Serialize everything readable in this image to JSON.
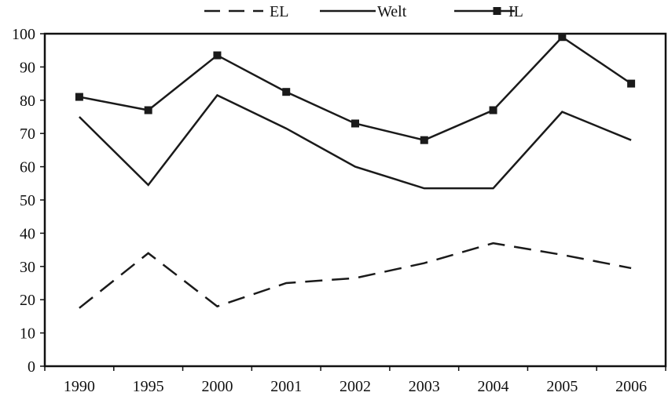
{
  "chart_data": {
    "type": "line",
    "categories": [
      "1990",
      "1995",
      "2000",
      "2001",
      "2002",
      "2003",
      "2004",
      "2005",
      "2006"
    ],
    "series": [
      {
        "name": "EL",
        "values": [
          17.5,
          34,
          18,
          25,
          26.5,
          31,
          37,
          33.5,
          29.5
        ],
        "line_style": "dashed",
        "marker": "none",
        "color": "#1a1a1a"
      },
      {
        "name": "Welt",
        "values": [
          75,
          54.5,
          81.5,
          71.5,
          60,
          53.5,
          53.5,
          76.5,
          68
        ],
        "line_style": "solid",
        "marker": "none",
        "color": "#1a1a1a"
      },
      {
        "name": "IL",
        "values": [
          81,
          77,
          93.5,
          82.5,
          73,
          68,
          77,
          99,
          85
        ],
        "line_style": "solid",
        "marker": "square",
        "color": "#1a1a1a"
      }
    ],
    "yticks": [
      "0",
      "10",
      "20",
      "30",
      "40",
      "50",
      "60",
      "70",
      "80",
      "90",
      "100"
    ],
    "ylim": [
      0,
      100
    ],
    "grid": false,
    "legend_position": "top"
  }
}
